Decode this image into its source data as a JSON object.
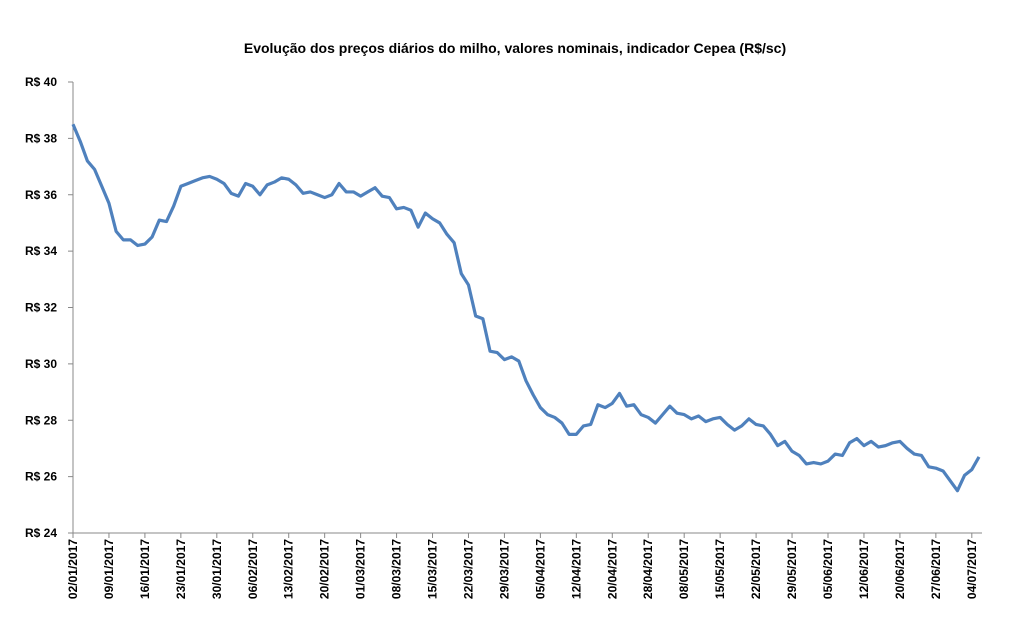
{
  "chart_data": {
    "type": "line",
    "title": "Evolução dos preços diários do milho, valores nominais, indicador Cepea (R$/sc)",
    "categories": [
      "02/01/2017",
      null,
      null,
      null,
      null,
      "09/01/2017",
      null,
      null,
      null,
      null,
      "16/01/2017",
      null,
      null,
      null,
      null,
      "23/01/2017",
      null,
      null,
      null,
      null,
      "30/01/2017",
      null,
      null,
      null,
      null,
      "06/02/2017",
      null,
      null,
      null,
      null,
      "13/02/2017",
      null,
      null,
      null,
      null,
      "20/02/2017",
      null,
      null,
      null,
      null,
      "01/03/2017",
      null,
      null,
      null,
      null,
      "08/03/2017",
      null,
      null,
      null,
      null,
      "15/03/2017",
      null,
      null,
      null,
      null,
      "22/03/2017",
      null,
      null,
      null,
      null,
      "29/03/2017",
      null,
      null,
      null,
      null,
      "05/04/2017",
      null,
      null,
      null,
      null,
      "12/04/2017",
      null,
      null,
      null,
      null,
      "20/04/2017",
      null,
      null,
      null,
      null,
      "28/04/2017",
      null,
      null,
      null,
      null,
      "08/05/2017",
      null,
      null,
      null,
      null,
      "15/05/2017",
      null,
      null,
      null,
      null,
      "22/05/2017",
      null,
      null,
      null,
      null,
      "29/05/2017",
      null,
      null,
      null,
      null,
      "05/06/2017",
      null,
      null,
      null,
      null,
      "12/06/2017",
      null,
      null,
      null,
      null,
      "20/06/2017",
      null,
      null,
      null,
      null,
      "27/06/2017",
      null,
      null,
      null,
      null,
      "04/07/2017",
      null
    ],
    "series": [
      {
        "name": "Indicador Cepea",
        "color": "#4f81bd",
        "values": [
          38.5,
          37.9,
          37.2,
          36.9,
          36.3,
          35.7,
          34.7,
          34.4,
          34.4,
          34.2,
          34.25,
          34.5,
          35.1,
          35.05,
          35.6,
          36.3,
          36.4,
          36.5,
          36.6,
          36.65,
          36.55,
          36.4,
          36.05,
          35.95,
          36.4,
          36.3,
          36.0,
          36.35,
          36.45,
          36.6,
          36.55,
          36.35,
          36.05,
          36.1,
          36.0,
          35.9,
          36.0,
          36.4,
          36.1,
          36.1,
          35.95,
          36.1,
          36.25,
          35.95,
          35.9,
          35.5,
          35.55,
          35.45,
          34.85,
          35.35,
          35.15,
          35.0,
          34.6,
          34.3,
          33.2,
          32.8,
          31.7,
          31.6,
          30.45,
          30.4,
          30.15,
          30.25,
          30.1,
          29.4,
          28.9,
          28.45,
          28.2,
          28.1,
          27.9,
          27.5,
          27.5,
          27.8,
          27.85,
          28.55,
          28.45,
          28.6,
          28.95,
          28.5,
          28.55,
          28.2,
          28.1,
          27.9,
          28.2,
          28.5,
          28.25,
          28.2,
          28.05,
          28.15,
          27.95,
          28.05,
          28.1,
          27.85,
          27.65,
          27.8,
          28.05,
          27.85,
          27.8,
          27.5,
          27.1,
          27.25,
          26.9,
          26.75,
          26.45,
          26.5,
          26.45,
          26.55,
          26.8,
          26.75,
          27.2,
          27.35,
          27.1,
          27.25,
          27.05,
          27.1,
          27.2,
          27.25,
          27.0,
          26.8,
          26.75,
          26.35,
          26.3,
          26.2,
          25.85,
          25.5,
          26.05,
          26.25,
          26.7
        ]
      }
    ],
    "ylim": [
      24,
      40
    ],
    "yticks": [
      {
        "value": 24,
        "label": "R$ 24"
      },
      {
        "value": 26,
        "label": "R$ 26"
      },
      {
        "value": 28,
        "label": "R$ 28"
      },
      {
        "value": 30,
        "label": "R$ 30"
      },
      {
        "value": 32,
        "label": "R$ 32"
      },
      {
        "value": 34,
        "label": "R$ 34"
      },
      {
        "value": 36,
        "label": "R$ 36"
      },
      {
        "value": 38,
        "label": "R$ 38"
      },
      {
        "value": 40,
        "label": "R$ 40"
      }
    ],
    "grid": false
  }
}
